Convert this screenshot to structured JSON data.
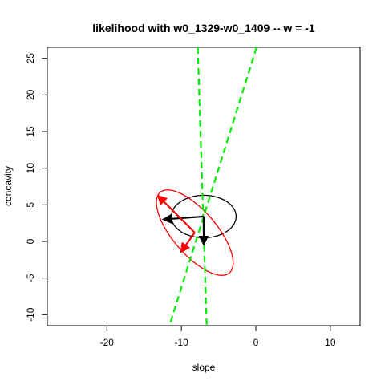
{
  "chart_data": {
    "type": "scatter",
    "title": "likelihood with w0_1329-w0_1409  -- w = -1",
    "xlabel": "slope",
    "ylabel": "concavity",
    "xlim": [
      -28,
      14
    ],
    "ylim": [
      -11.5,
      26.5
    ],
    "x_ticks": [
      -20,
      -10,
      0,
      10
    ],
    "x_tick_labels": [
      "-20",
      "-10",
      "0",
      "10"
    ],
    "y_ticks": [
      -10,
      -5,
      0,
      5,
      10,
      15,
      20,
      25
    ],
    "y_tick_labels": [
      "-10",
      "-5",
      "0",
      "5",
      "10",
      "15",
      "20",
      "25"
    ],
    "grid": false,
    "center": {
      "x": -7,
      "y": 3.4
    },
    "ellipses": [
      {
        "name": "black ellipse",
        "cx": -7,
        "cy": 3.4,
        "rx": 4.35,
        "ry": 2.9,
        "angle_deg": 0,
        "color": "#000000"
      },
      {
        "name": "red ellipse",
        "cx": -8.2,
        "cy": 1.2,
        "rx": 7.2,
        "ry": 2.95,
        "angle_deg": -50,
        "color": "#ff0000"
      }
    ],
    "lines": [
      {
        "name": "green dashed line 1",
        "points": [
          [
            -7.8,
            26.5
          ],
          [
            -6.6,
            -11.5
          ]
        ],
        "color": "#00ee00",
        "dash": true
      },
      {
        "name": "green dashed line 2",
        "points": [
          [
            0.1,
            26.5
          ],
          [
            -11.6,
            -11.5
          ]
        ],
        "color": "#00ee00",
        "dash": true
      }
    ],
    "arrows": [
      {
        "name": "black arrow left",
        "from": [
          -7,
          3.4
        ],
        "to": [
          -12.5,
          3.0
        ],
        "color": "#000000"
      },
      {
        "name": "black arrow down",
        "from": [
          -7,
          3.4
        ],
        "to": [
          -7.0,
          -0.5
        ],
        "color": "#000000"
      },
      {
        "name": "red arrow upper-left",
        "from": [
          -8.2,
          1.2
        ],
        "to": [
          -13.2,
          6.3
        ],
        "color": "#ff0000"
      },
      {
        "name": "red arrow lower-right",
        "from": [
          -8.2,
          1.2
        ],
        "to": [
          -10.1,
          -1.5
        ],
        "color": "#ff0000"
      }
    ]
  }
}
